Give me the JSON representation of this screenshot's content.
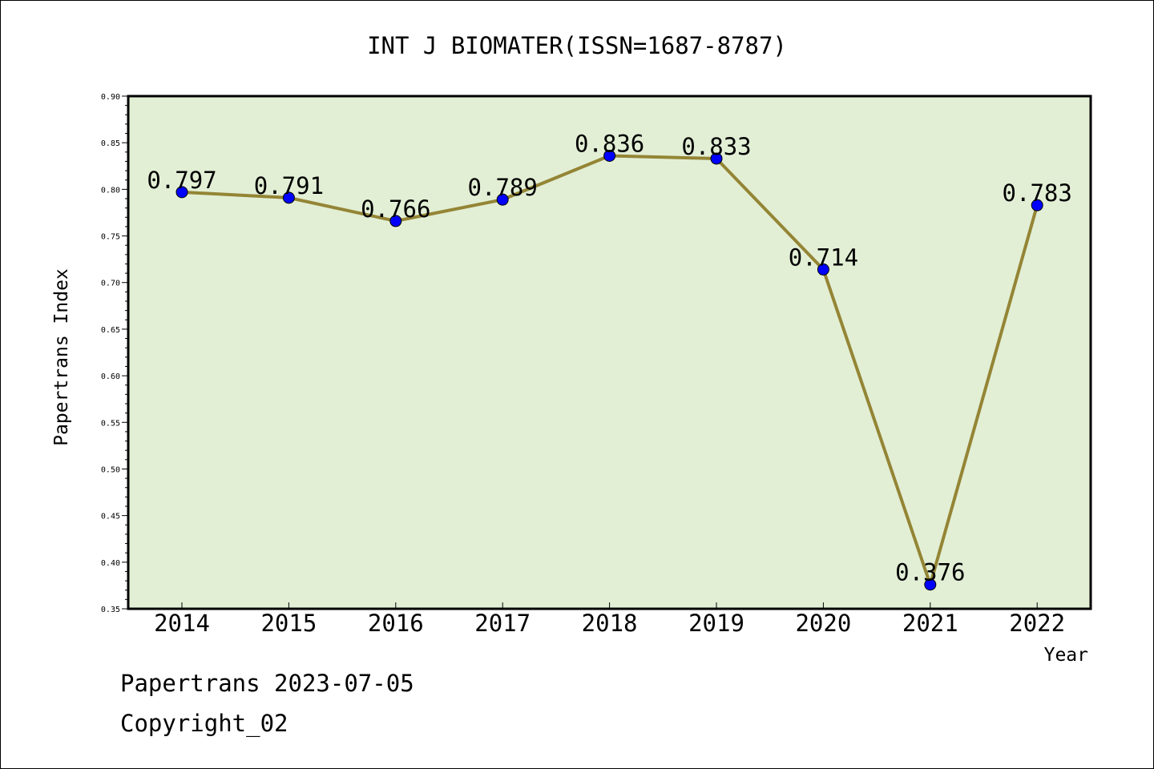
{
  "chart_data": {
    "type": "line",
    "title": "INT J BIOMATER(ISSN=1687-8787)",
    "xlabel": "Year",
    "ylabel": "Papertrans Index",
    "categories": [
      "2014",
      "2015",
      "2016",
      "2017",
      "2018",
      "2019",
      "2020",
      "2021",
      "2022"
    ],
    "values": [
      0.797,
      0.791,
      0.766,
      0.789,
      0.836,
      0.833,
      0.714,
      0.376,
      0.783
    ],
    "data_labels": [
      "0.797",
      "0.791",
      "0.766",
      "0.789",
      "0.836",
      "0.833",
      "0.714",
      "0.376",
      "0.783"
    ],
    "ylim": [
      0.35,
      0.9
    ],
    "yticks": [
      "0.35",
      "0.40",
      "0.45",
      "0.50",
      "0.55",
      "0.60",
      "0.65",
      "0.70",
      "0.75",
      "0.80",
      "0.85",
      "0.90"
    ],
    "grid": false,
    "legend": "none",
    "colors": {
      "plot_background": "#e2efd5",
      "line": "#948535",
      "marker": "#0000ff"
    }
  },
  "footer": {
    "source": "Papertrans 2023-07-05",
    "copyright": "Copyright_02"
  }
}
